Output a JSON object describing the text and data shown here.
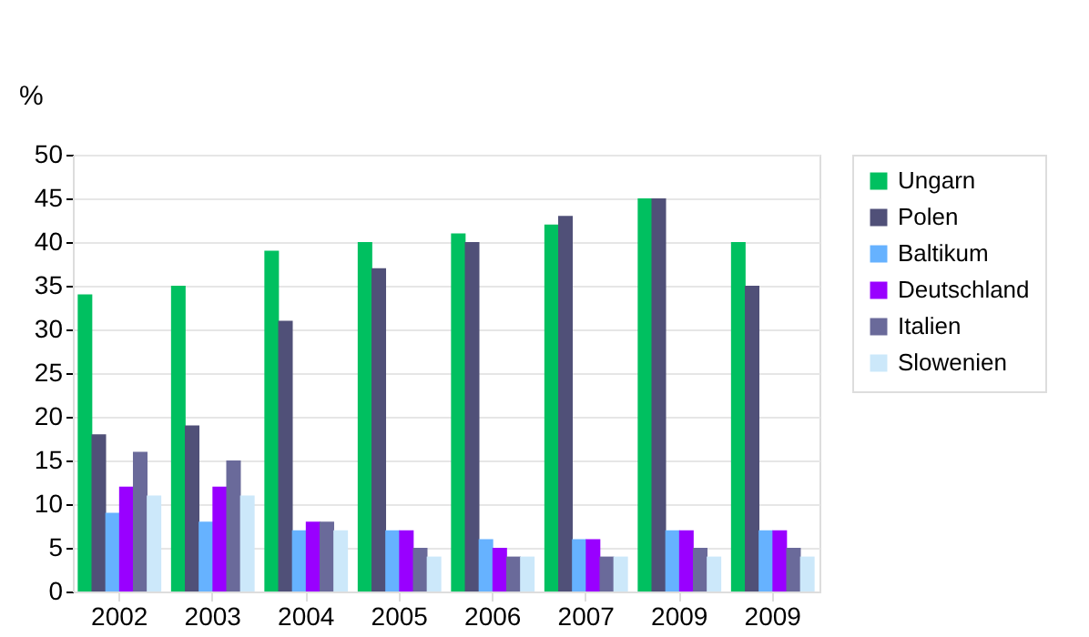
{
  "chart_data": {
    "type": "bar",
    "ylabel": "%",
    "categories": [
      "2002",
      "2003",
      "2004",
      "2005",
      "2006",
      "2007",
      "2009",
      "2009"
    ],
    "series": [
      {
        "name": "Ungarn",
        "color": "#00c060",
        "values": [
          34,
          35,
          39,
          40,
          41,
          42,
          45,
          40
        ]
      },
      {
        "name": "Polen",
        "color": "#505078",
        "values": [
          18,
          19,
          31,
          37,
          40,
          43,
          45,
          35
        ]
      },
      {
        "name": "Baltikum",
        "color": "#66b2ff",
        "values": [
          9,
          8,
          7,
          7,
          6,
          6,
          7,
          7
        ]
      },
      {
        "name": "Deutschland",
        "color": "#9900ff",
        "values": [
          12,
          12,
          8,
          7,
          5,
          6,
          7,
          7
        ]
      },
      {
        "name": "Italien",
        "color": "#6a6a9a",
        "values": [
          16,
          15,
          8,
          5,
          4,
          4,
          5,
          5
        ]
      },
      {
        "name": "Slowenien",
        "color": "#cce8fa",
        "values": [
          11,
          11,
          7,
          4,
          4,
          4,
          4,
          4
        ]
      }
    ],
    "ylim": [
      0,
      50
    ],
    "yticks": [
      0,
      5,
      10,
      15,
      20,
      25,
      30,
      35,
      40,
      45,
      50
    ],
    "grid": "y",
    "legend": "right"
  }
}
